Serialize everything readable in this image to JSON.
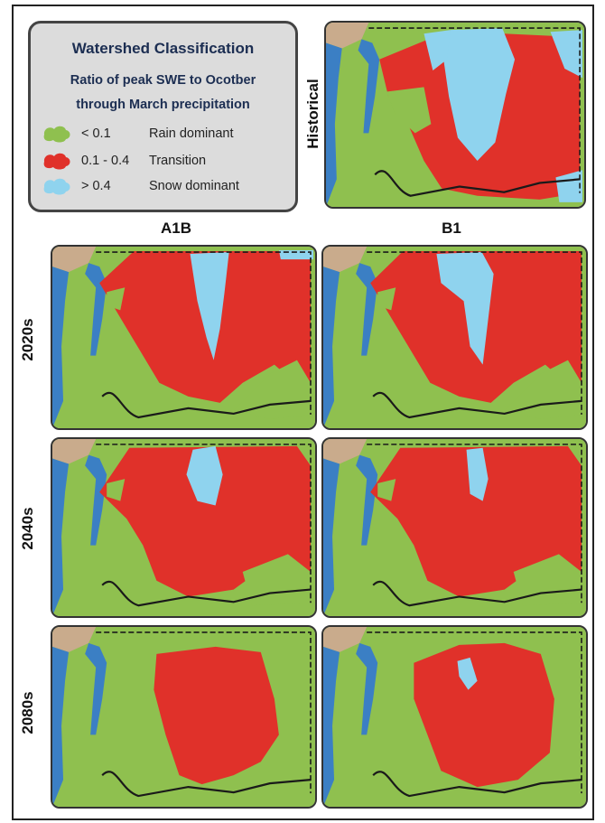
{
  "legend": {
    "title": "Watershed Classification",
    "subtitle_line1": "Ratio of peak SWE to Ocotber",
    "subtitle_line2": "through March precipitation",
    "items": [
      {
        "value": "< 0.1",
        "label": "Rain dominant",
        "color": "#8fc04f"
      },
      {
        "value": "0.1 - 0.4",
        "label": "Transition",
        "color": "#e0312a"
      },
      {
        "value": "> 0.4",
        "label": "Snow dominant",
        "color": "#8fd3ee"
      }
    ]
  },
  "columns": [
    "A1B",
    "B1"
  ],
  "rows": [
    "2020s",
    "2040s",
    "2080s"
  ],
  "historical_label": "Historical",
  "colors": {
    "rain": "#8fc04f",
    "transition": "#e0312a",
    "snow": "#8fd3ee",
    "water": "#3b7fc4",
    "canada": "#c9ab8c",
    "border": "#1a1a1a"
  }
}
